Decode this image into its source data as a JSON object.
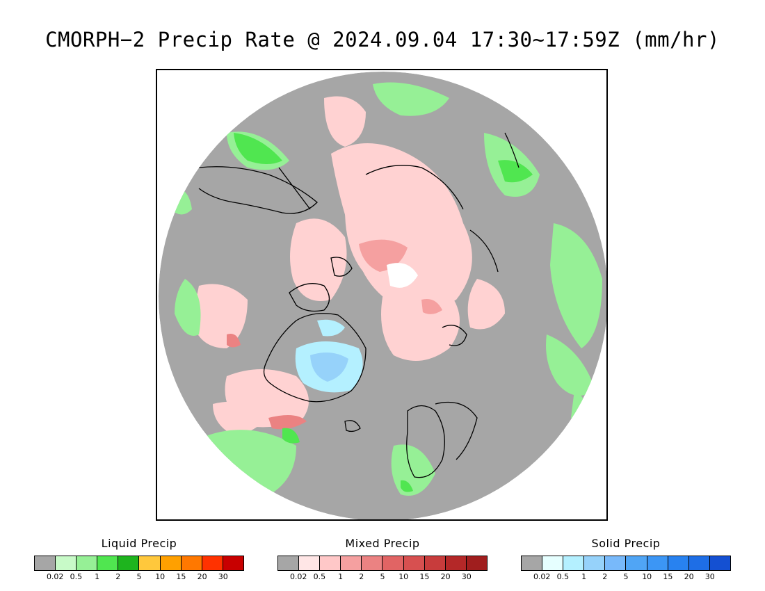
{
  "title": "CMORPH−2 Precip Rate @ 2024.09.04 17:30~17:59Z (mm/hr)",
  "map": {
    "projection": "north-polar-stereographic",
    "background_color": "#a6a6a6",
    "coastline_color": "#000000"
  },
  "legends": [
    {
      "id": "liquid",
      "title": "Liquid Precip",
      "colors": [
        "#a6a6a6",
        "#c8fac8",
        "#96f096",
        "#50e650",
        "#1eb41e",
        "#ffc83c",
        "#ffa000",
        "#ff7800",
        "#ff3200",
        "#c80000"
      ],
      "ticks": [
        "0.02",
        "0.5",
        "1",
        "2",
        "5",
        "10",
        "15",
        "20",
        "30"
      ]
    },
    {
      "id": "mixed",
      "title": "Mixed Precip",
      "colors": [
        "#a6a6a6",
        "#ffe6e6",
        "#ffc8c8",
        "#f5a0a0",
        "#eb8282",
        "#e16464",
        "#d75050",
        "#c83c3c",
        "#b42828",
        "#a01e1e"
      ],
      "ticks": [
        "0.02",
        "0.5",
        "1",
        "2",
        "5",
        "10",
        "15",
        "20",
        "30"
      ]
    },
    {
      "id": "solid",
      "title": "Solid Precip",
      "colors": [
        "#a6a6a6",
        "#e6ffff",
        "#b4f0ff",
        "#96d2fa",
        "#78b9fa",
        "#50a5f5",
        "#3c96f5",
        "#2882f0",
        "#1e6ee6",
        "#1450d2"
      ],
      "ticks": [
        "0.02",
        "0.5",
        "1",
        "2",
        "5",
        "10",
        "15",
        "20",
        "30"
      ]
    }
  ]
}
